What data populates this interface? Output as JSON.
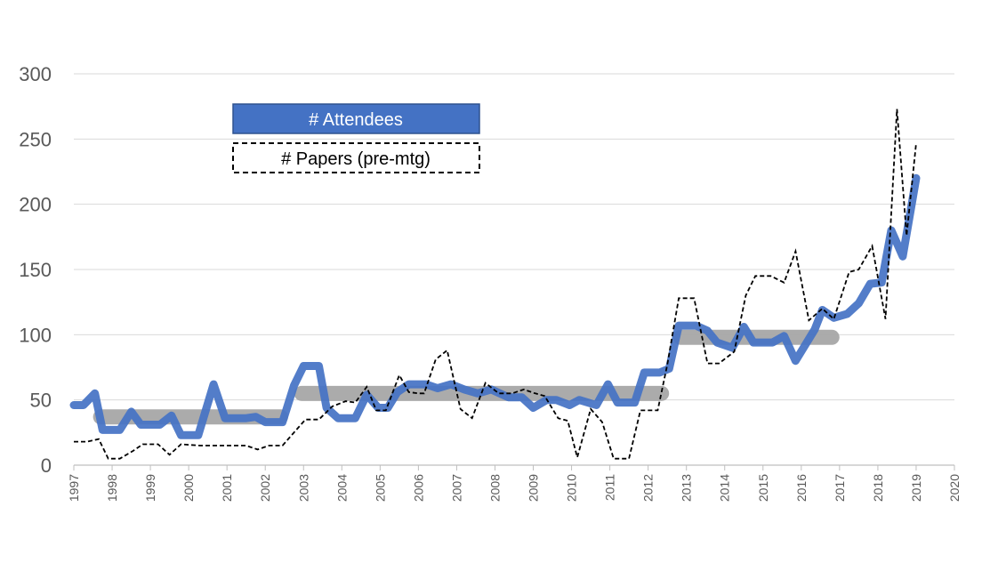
{
  "chart_data": {
    "type": "line",
    "title": "",
    "xlabel": "",
    "ylabel": "",
    "xlim": [
      1997,
      2020
    ],
    "ylim": [
      0,
      300
    ],
    "yticks": [
      0,
      50,
      100,
      150,
      200,
      250,
      300
    ],
    "xticks": [
      "1997",
      "1998",
      "1999",
      "2000",
      "2001",
      "2002",
      "2003",
      "2004",
      "2005",
      "2006",
      "2007",
      "2008",
      "2009",
      "2010",
      "2011",
      "2012",
      "2013",
      "2014",
      "2015",
      "2016",
      "2017",
      "2018",
      "2019",
      "2020"
    ],
    "grid": "horizontal",
    "legend": {
      "placement": "top-left",
      "entries": [
        "# Attendees",
        "# Papers (pre-mtg)"
      ]
    },
    "colors": {
      "attendees": "#4472C4",
      "papers": "#000000",
      "averages": "#A6A6A6",
      "grid": "#D9D9D9",
      "axis_text": "#595959"
    },
    "series": [
      {
        "name": "# Attendees",
        "style": "thick-solid",
        "points": [
          [
            1997.0,
            46
          ],
          [
            1997.25,
            46
          ],
          [
            1997.55,
            55
          ],
          [
            1997.75,
            27
          ],
          [
            1998.2,
            27
          ],
          [
            1998.5,
            41
          ],
          [
            1998.75,
            31
          ],
          [
            1999.25,
            31
          ],
          [
            1999.55,
            38
          ],
          [
            1999.8,
            23
          ],
          [
            2000.25,
            23
          ],
          [
            2000.65,
            62
          ],
          [
            2000.95,
            36
          ],
          [
            2001.5,
            36
          ],
          [
            2001.75,
            37
          ],
          [
            2002.0,
            33
          ],
          [
            2002.45,
            33
          ],
          [
            2002.75,
            61
          ],
          [
            2003.0,
            76
          ],
          [
            2003.4,
            76
          ],
          [
            2003.6,
            44
          ],
          [
            2003.9,
            36
          ],
          [
            2004.35,
            36
          ],
          [
            2004.65,
            54
          ],
          [
            2004.95,
            44
          ],
          [
            2005.2,
            44
          ],
          [
            2005.45,
            56
          ],
          [
            2005.75,
            62
          ],
          [
            2006.2,
            62
          ],
          [
            2006.5,
            59
          ],
          [
            2006.85,
            62
          ],
          [
            2007.2,
            58
          ],
          [
            2007.55,
            55
          ],
          [
            2007.9,
            58
          ],
          [
            2008.35,
            52
          ],
          [
            2008.7,
            52
          ],
          [
            2009.0,
            44
          ],
          [
            2009.35,
            50
          ],
          [
            2009.6,
            50
          ],
          [
            2009.95,
            46
          ],
          [
            2010.2,
            50
          ],
          [
            2010.65,
            46
          ],
          [
            2010.95,
            62
          ],
          [
            2011.2,
            48
          ],
          [
            2011.65,
            48
          ],
          [
            2011.9,
            71
          ],
          [
            2012.3,
            71
          ],
          [
            2012.55,
            74
          ],
          [
            2012.8,
            107
          ],
          [
            2013.25,
            107
          ],
          [
            2013.55,
            103
          ],
          [
            2013.8,
            94
          ],
          [
            2014.2,
            90
          ],
          [
            2014.5,
            106
          ],
          [
            2014.75,
            94
          ],
          [
            2015.25,
            94
          ],
          [
            2015.55,
            99
          ],
          [
            2015.85,
            80
          ],
          [
            2016.35,
            104
          ],
          [
            2016.55,
            119
          ],
          [
            2016.85,
            113
          ],
          [
            2017.2,
            116
          ],
          [
            2017.5,
            124
          ],
          [
            2017.8,
            139
          ],
          [
            2018.1,
            140
          ],
          [
            2018.35,
            180
          ],
          [
            2018.65,
            160
          ],
          [
            2019.0,
            220
          ]
        ]
      },
      {
        "name": "# Papers (pre-mtg)",
        "style": "dashed",
        "points": [
          [
            1997.0,
            18
          ],
          [
            1997.35,
            18
          ],
          [
            1997.65,
            20
          ],
          [
            1997.9,
            5
          ],
          [
            1998.2,
            5
          ],
          [
            1998.55,
            11
          ],
          [
            1998.8,
            16
          ],
          [
            1999.2,
            16
          ],
          [
            1999.5,
            8
          ],
          [
            1999.8,
            16
          ],
          [
            2000.3,
            15
          ],
          [
            2000.7,
            15
          ],
          [
            2001.1,
            15
          ],
          [
            2001.5,
            15
          ],
          [
            2001.8,
            12
          ],
          [
            2002.1,
            15
          ],
          [
            2002.45,
            15
          ],
          [
            2002.75,
            25
          ],
          [
            2003.05,
            35
          ],
          [
            2003.4,
            35
          ],
          [
            2003.75,
            45
          ],
          [
            2004.1,
            49
          ],
          [
            2004.35,
            48
          ],
          [
            2004.65,
            60
          ],
          [
            2004.9,
            42
          ],
          [
            2005.15,
            42
          ],
          [
            2005.5,
            69
          ],
          [
            2005.75,
            56
          ],
          [
            2006.0,
            55
          ],
          [
            2006.15,
            55
          ],
          [
            2006.45,
            81
          ],
          [
            2006.75,
            88
          ],
          [
            2007.1,
            43
          ],
          [
            2007.4,
            36
          ],
          [
            2007.75,
            63
          ],
          [
            2008.1,
            55
          ],
          [
            2008.45,
            55
          ],
          [
            2008.75,
            58
          ],
          [
            2009.05,
            55
          ],
          [
            2009.3,
            53
          ],
          [
            2009.65,
            36
          ],
          [
            2009.9,
            34
          ],
          [
            2010.15,
            6
          ],
          [
            2010.5,
            43
          ],
          [
            2010.8,
            33
          ],
          [
            2011.1,
            5
          ],
          [
            2011.5,
            5
          ],
          [
            2011.8,
            42
          ],
          [
            2012.25,
            42
          ],
          [
            2012.5,
            77
          ],
          [
            2012.8,
            128
          ],
          [
            2013.2,
            128
          ],
          [
            2013.55,
            78
          ],
          [
            2013.85,
            78
          ],
          [
            2014.25,
            87
          ],
          [
            2014.55,
            130
          ],
          [
            2014.8,
            145
          ],
          [
            2015.2,
            145
          ],
          [
            2015.55,
            140
          ],
          [
            2015.85,
            164
          ],
          [
            2016.2,
            111
          ],
          [
            2016.55,
            120
          ],
          [
            2016.85,
            112
          ],
          [
            2017.25,
            148
          ],
          [
            2017.5,
            150
          ],
          [
            2017.85,
            168
          ],
          [
            2018.2,
            112
          ],
          [
            2018.5,
            273
          ],
          [
            2018.75,
            176
          ],
          [
            2019.0,
            247
          ]
        ]
      }
    ],
    "averages": [
      {
        "x": [
          1997.7,
          2002.4
        ],
        "y": 37
      },
      {
        "x": [
          2002.95,
          2012.35
        ],
        "y": 55
      },
      {
        "x": [
          2012.85,
          2016.8
        ],
        "y": 98
      }
    ]
  }
}
